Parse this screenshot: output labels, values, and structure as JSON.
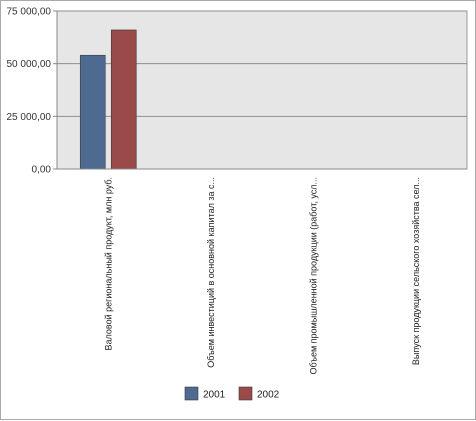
{
  "chart_data": {
    "type": "bar",
    "title": "",
    "xlabel": "",
    "ylabel": "",
    "categories": [
      "Валовой региональный продукт, млн руб.",
      "Объем инвестиций в основной капитал за с...",
      "Объем промышленной продукции (работ, усл...",
      "Выпуск продукции сельского хозяйства сел..."
    ],
    "series": [
      {
        "name": "2001",
        "color": "#4f6a91",
        "values": [
          54000,
          0,
          0,
          0
        ]
      },
      {
        "name": "2002",
        "color": "#9b4a4a",
        "values": [
          66000,
          0,
          0,
          0
        ]
      }
    ],
    "ylim": [
      0,
      75000
    ],
    "yticks": [
      0,
      25000,
      50000,
      75000
    ],
    "ytick_labels": [
      "0,00",
      "25 000,00",
      "50 000,00",
      "75 000,00"
    ],
    "grid": true,
    "legend": "bottom-center",
    "plot_background": "#e6e6e6"
  }
}
